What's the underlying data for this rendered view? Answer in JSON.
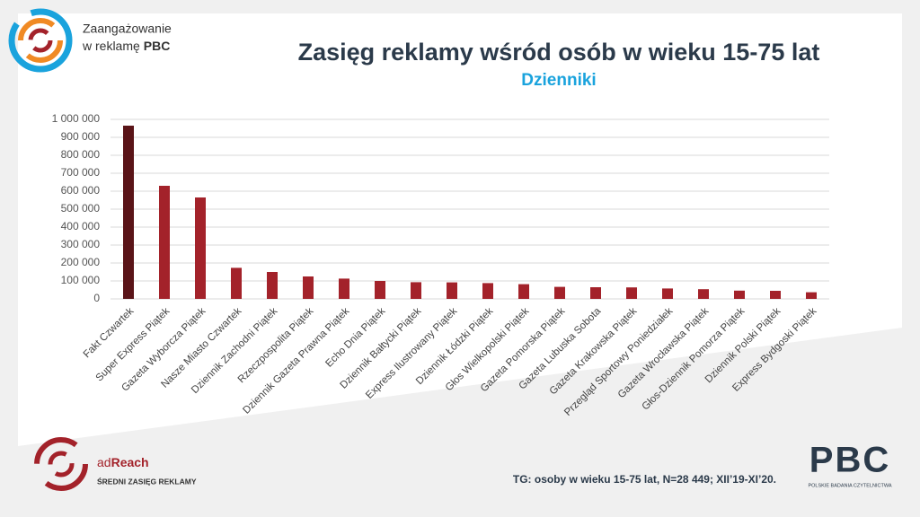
{
  "logo": {
    "line1": "Zaangażowanie",
    "line2": "w reklamę",
    "line2_bold": "PBC"
  },
  "chart_data": {
    "type": "bar",
    "title": "Zasięg reklamy wśród osób w wieku 15-75 lat",
    "subtitle": "Dzienniki",
    "categories": [
      "Fakt Czwartek",
      "Super Express Piątek",
      "Gazeta Wyborcza Piątek",
      "Nasze Miasto Czwartek",
      "Dziennik Zachodni Piątek",
      "Rzeczpospolita Piątek",
      "Dziennik Gazeta Prawna Piątek",
      "Echo Dnia Piątek",
      "Dziennik Bałtycki Piątek",
      "Express Ilustrowany Piątek",
      "Dziennik Łódzki Piątek",
      "Głos Wielkopolski Piątek",
      "Gazeta Pomorska Piątek",
      "Gazeta Lubuska Sobota",
      "Gazeta Krakowska Piątek",
      "Przegląd Sportowy Poniedziałek",
      "Gazeta Wrocławska Piątek",
      "Głos-Dziennik Pomorza Piątek",
      "Dziennik Polski Piątek",
      "Express Bydgoski Piątek"
    ],
    "values": [
      965000,
      630000,
      565000,
      173000,
      150000,
      125000,
      113000,
      100000,
      93000,
      92000,
      88000,
      82000,
      67000,
      65000,
      64000,
      58000,
      54000,
      46000,
      45000,
      37000
    ],
    "colors": [
      "#5a1418",
      "#a3222a",
      "#a3222a",
      "#a3222a",
      "#a3222a",
      "#a3222a",
      "#a3222a",
      "#a3222a",
      "#a3222a",
      "#a3222a",
      "#a3222a",
      "#a3222a",
      "#a3222a",
      "#a3222a",
      "#a3222a",
      "#a3222a",
      "#a3222a",
      "#a3222a",
      "#a3222a",
      "#a3222a"
    ],
    "ylim": [
      0,
      1000000
    ],
    "yticks": [
      0,
      {
        "value": 100000,
        "label": "100 000"
      },
      {
        "value": 200000,
        "label": "200 000"
      },
      {
        "value": 300000,
        "label": "300 000"
      },
      {
        "value": 400000,
        "label": "400 000"
      },
      {
        "value": 500000,
        "label": "500 000"
      },
      {
        "value": 600000,
        "label": "600 000"
      },
      {
        "value": 700000,
        "label": "700 000"
      },
      {
        "value": 800000,
        "label": "800 000"
      },
      {
        "value": 900000,
        "label": "900 000"
      },
      {
        "value": 1000000,
        "label": "1 000 000"
      }
    ],
    "grid": true
  },
  "adreach": {
    "brand_prefix": "ad",
    "brand_bold": "Reach",
    "caption": "ŚREDNI ZASIĘG REKLAMY"
  },
  "footnote": "TG: osoby w wieku 15-75 lat, N=28 449; XII’19-XI’20.",
  "pbc_logo": {
    "letters": "PBC",
    "caption": "POLSKIE BADANIA CZYTELNICTWA"
  }
}
